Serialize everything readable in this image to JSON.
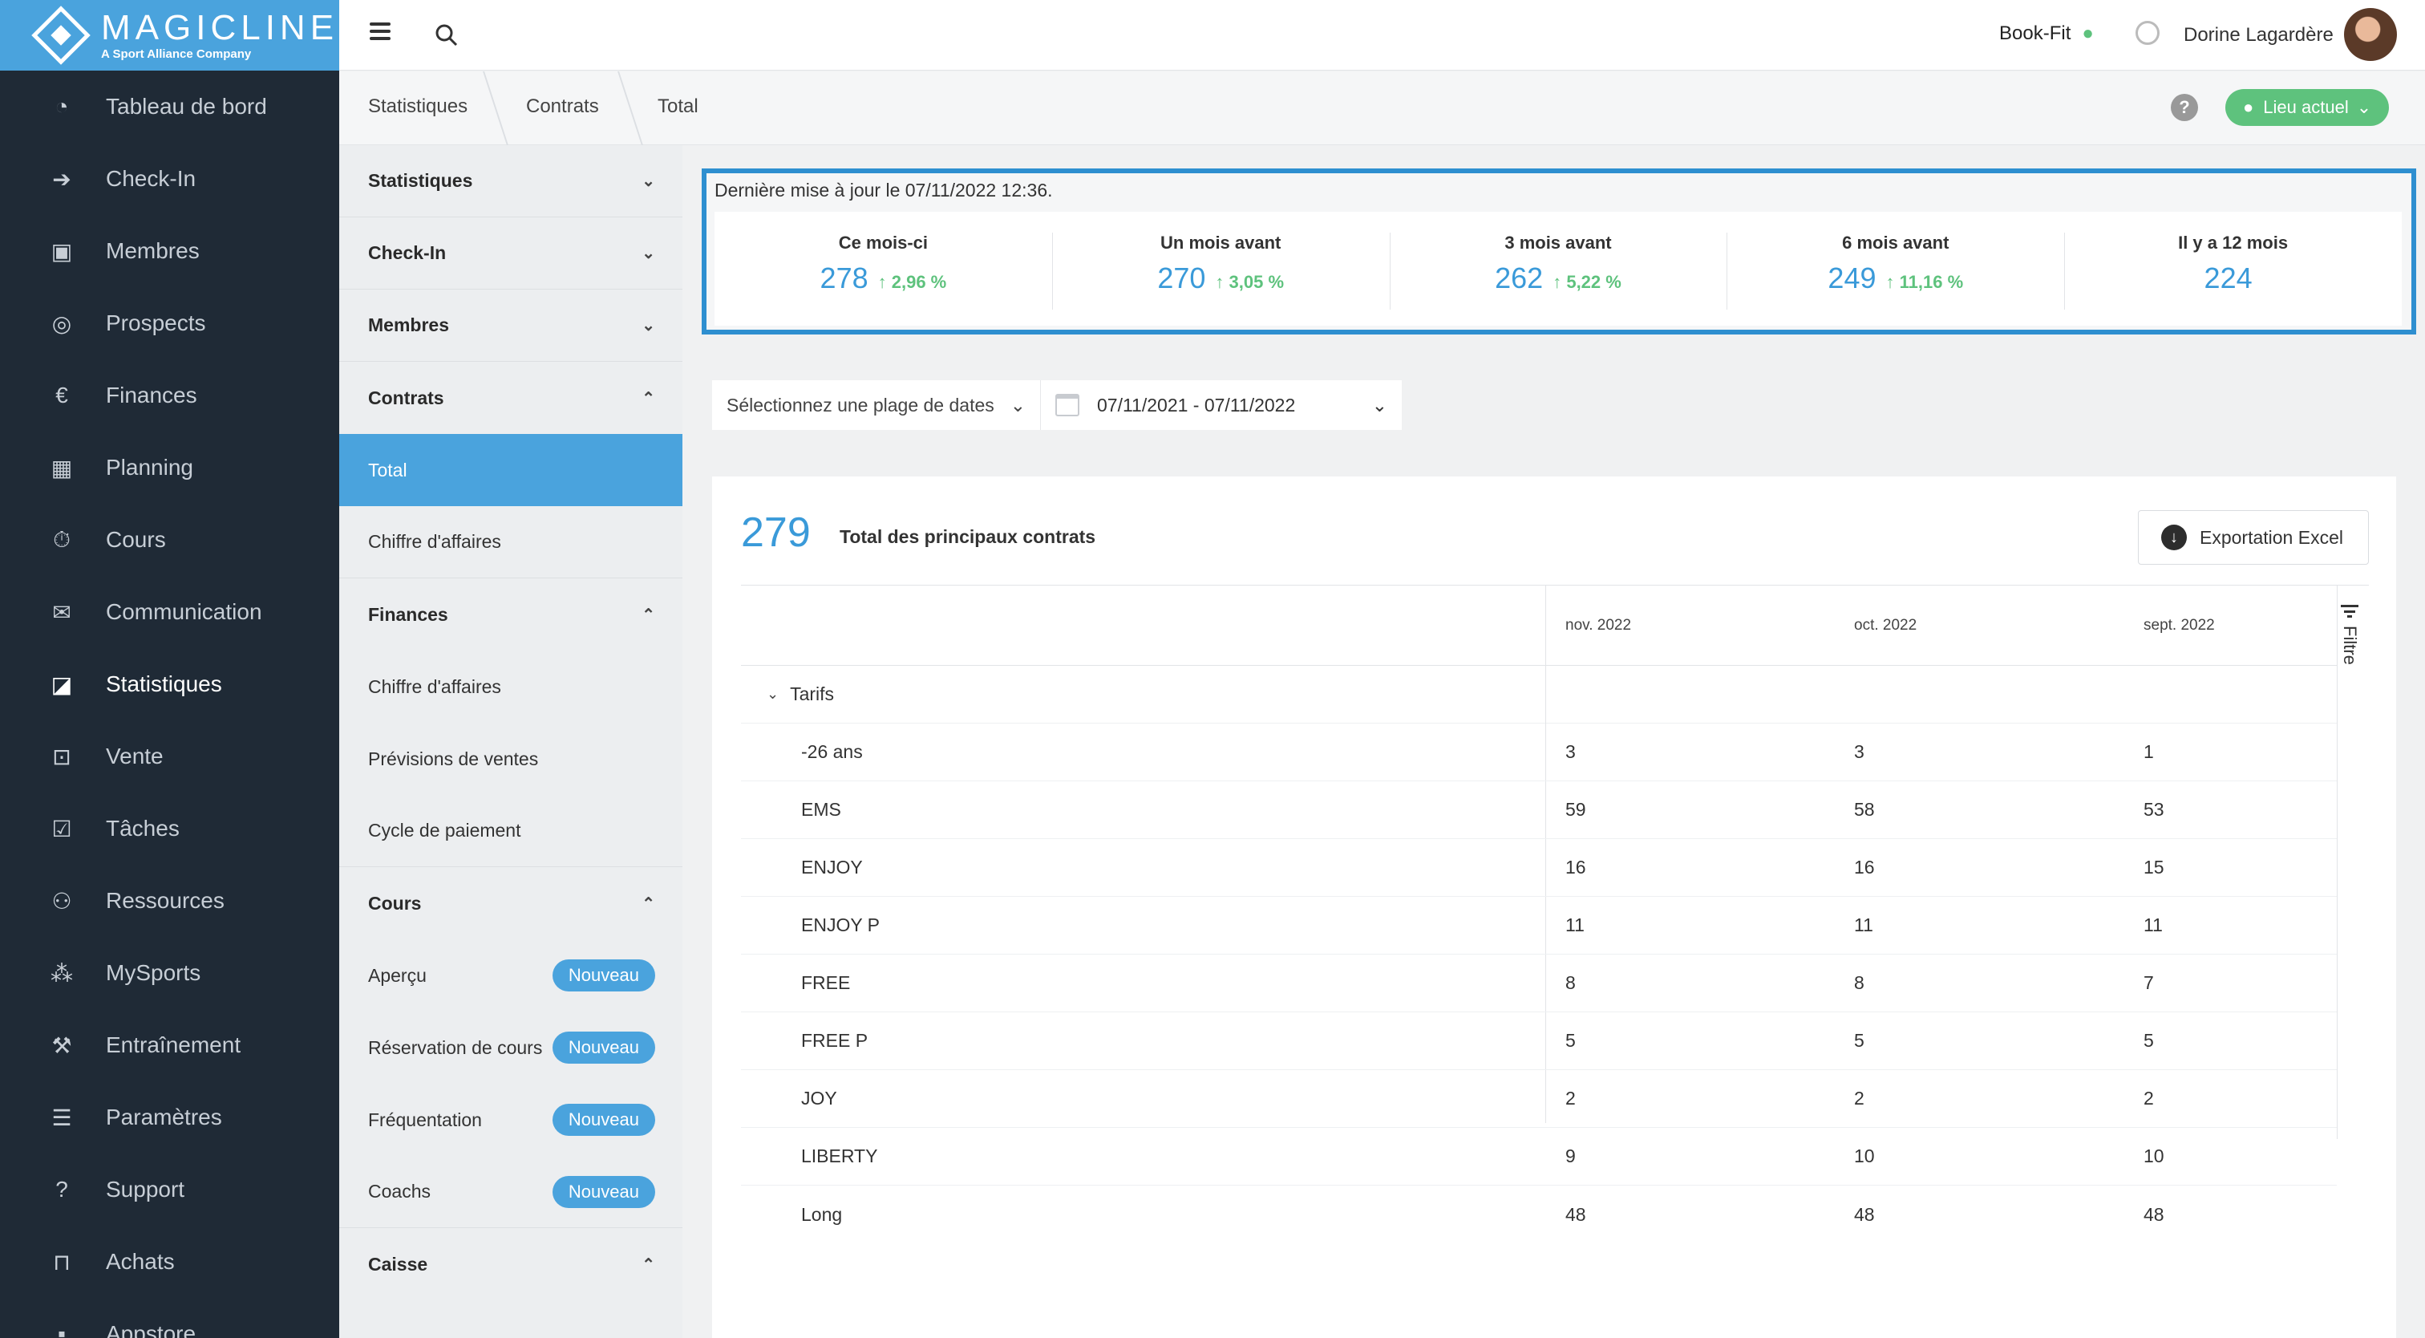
{
  "brand": {
    "name": "MAGICLINE",
    "tagline": "A Sport Alliance Company",
    "color": "#4aa3dd"
  },
  "nav": {
    "items": [
      {
        "label": "Tableau de bord",
        "icon": "dashboard-icon"
      },
      {
        "label": "Check-In",
        "icon": "checkin-icon"
      },
      {
        "label": "Membres",
        "icon": "members-icon"
      },
      {
        "label": "Prospects",
        "icon": "prospects-icon"
      },
      {
        "label": "Finances",
        "icon": "finances-icon"
      },
      {
        "label": "Planning",
        "icon": "calendar-icon"
      },
      {
        "label": "Cours",
        "icon": "stopwatch-icon"
      },
      {
        "label": "Communication",
        "icon": "chat-icon"
      },
      {
        "label": "Statistiques",
        "icon": "statistics-icon"
      },
      {
        "label": "Vente",
        "icon": "cart-icon"
      },
      {
        "label": "Tâches",
        "icon": "task-icon"
      },
      {
        "label": "Ressources",
        "icon": "resources-icon"
      },
      {
        "label": "MySports",
        "icon": "mysports-icon"
      },
      {
        "label": "Entraînement",
        "icon": "dumbbell-icon"
      },
      {
        "label": "Paramètres",
        "icon": "sliders-icon"
      },
      {
        "label": "Support",
        "icon": "support-icon"
      },
      {
        "label": "Achats",
        "icon": "purchases-icon"
      },
      {
        "label": "Appstore",
        "icon": "appstore-icon"
      }
    ],
    "active": "Statistiques"
  },
  "topbar": {
    "studio": "Book-Fit",
    "user": "Dorine Lagardère"
  },
  "breadcrumb": {
    "items": [
      "Statistiques",
      "Contrats",
      "Total"
    ],
    "location_label": "Lieu actuel"
  },
  "subnav": {
    "sections": {
      "statistiques": "Statistiques",
      "checkin": "Check-In",
      "membres": "Membres",
      "contrats": "Contrats",
      "finances": "Finances",
      "cours": "Cours",
      "caisse": "Caisse"
    },
    "contrats_items": {
      "total": "Total",
      "chiffre": "Chiffre d'affaires"
    },
    "finances_items": {
      "chiffre": "Chiffre d'affaires",
      "previsions": "Prévisions de ventes",
      "cycle": "Cycle de paiement"
    },
    "cours_items": {
      "apercu": "Aperçu",
      "reservation": "Réservation de cours",
      "frequentation": "Fréquentation",
      "coachs": "Coachs"
    },
    "new_badge": "Nouveau"
  },
  "kpis": {
    "updated": "Dernière mise à jour le 07/11/2022 12:36.",
    "cards": [
      {
        "label": "Ce mois-ci",
        "value": "278",
        "change": "↑ 2,96 %"
      },
      {
        "label": "Un mois avant",
        "value": "270",
        "change": "↑ 3,05 %"
      },
      {
        "label": "3 mois avant",
        "value": "262",
        "change": "↑ 5,22 %"
      },
      {
        "label": "6 mois avant",
        "value": "249",
        "change": "↑ 11,16 %"
      },
      {
        "label": "Il y a 12 mois",
        "value": "224",
        "change": ""
      }
    ]
  },
  "filters": {
    "range_placeholder": "Sélectionnez une plage de dates",
    "dates": "07/11/2021 - 07/11/2022"
  },
  "table": {
    "total": "279",
    "title": "Total des principaux contrats",
    "export_label": "Exportation Excel",
    "filter_label": "Filtre",
    "columns": [
      "nov. 2022",
      "oct. 2022",
      "sept. 2022"
    ],
    "group": "Tarifs",
    "rows": [
      {
        "name": "-26 ans",
        "v": [
          "3",
          "3",
          "1"
        ]
      },
      {
        "name": "EMS",
        "v": [
          "59",
          "58",
          "53"
        ]
      },
      {
        "name": "ENJOY",
        "v": [
          "16",
          "16",
          "15"
        ]
      },
      {
        "name": "ENJOY P",
        "v": [
          "11",
          "11",
          "11"
        ]
      },
      {
        "name": "FREE",
        "v": [
          "8",
          "8",
          "7"
        ]
      },
      {
        "name": "FREE P",
        "v": [
          "5",
          "5",
          "5"
        ]
      },
      {
        "name": "JOY",
        "v": [
          "2",
          "2",
          "2"
        ]
      },
      {
        "name": "LIBERTY",
        "v": [
          "9",
          "10",
          "10"
        ]
      },
      {
        "name": "Long",
        "v": [
          "48",
          "48",
          "48"
        ]
      }
    ]
  }
}
